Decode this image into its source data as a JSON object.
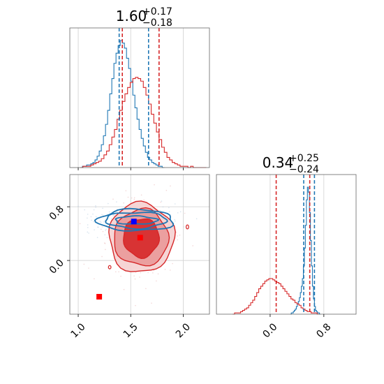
{
  "chart_data": [
    {
      "type": "histogram",
      "parameter_index": 0,
      "title": {
        "value": "1.60",
        "plus": "+0.17",
        "minus": "−0.18"
      },
      "xlim": [
        0.92,
        2.25
      ],
      "grid": true,
      "show_x_ticks": false,
      "series": [
        {
          "color": "#1f77b4",
          "bins_start": 1.02,
          "bin_width": 0.02,
          "counts": [
            0,
            1,
            1,
            2,
            2,
            3,
            4,
            6,
            9,
            13,
            18,
            25,
            34,
            45,
            58,
            70,
            82,
            90,
            96,
            100,
            98,
            94,
            86,
            78,
            68,
            57,
            47,
            38,
            30,
            23,
            17,
            12,
            8,
            6,
            4,
            3,
            2,
            1,
            1,
            0
          ],
          "quantiles": [
            1.39,
            1.67
          ]
        },
        {
          "color": "#d62728",
          "bins_start": 1.02,
          "bin_width": 0.025,
          "counts": [
            0,
            1,
            1,
            1,
            2,
            3,
            4,
            5,
            7,
            10,
            13,
            18,
            24,
            30,
            38,
            45,
            52,
            58,
            63,
            67,
            70,
            71,
            70,
            68,
            63,
            57,
            50,
            42,
            35,
            28,
            22,
            16,
            12,
            8,
            6,
            4,
            3,
            2,
            1,
            1,
            1,
            0,
            1,
            0,
            0,
            0,
            0,
            0
          ],
          "quantiles": [
            1.42,
            1.77
          ]
        }
      ]
    },
    {
      "type": "histogram",
      "parameter_index": 1,
      "title": {
        "value": "0.34",
        "plus": "+0.25",
        "minus": "−0.24"
      },
      "xlim": [
        -0.8,
        1.28
      ],
      "xticks": [
        "0.0",
        "0.8"
      ],
      "xtick_values": [
        0.0,
        0.8
      ],
      "grid": true,
      "series": [
        {
          "color": "#1f77b4",
          "bins_start": 0.3,
          "bin_width": 0.015,
          "counts": [
            0,
            1,
            1,
            2,
            3,
            4,
            6,
            8,
            10,
            13,
            17,
            22,
            28,
            38,
            52,
            70,
            90,
            100,
            96,
            80,
            58,
            38,
            22,
            12,
            6,
            3,
            2,
            1,
            1,
            0
          ],
          "quantiles": [
            0.5,
            0.66
          ]
        },
        {
          "color": "#d62728",
          "bins_start": -0.56,
          "bin_width": 0.03,
          "counts": [
            0,
            1,
            1,
            1,
            2,
            3,
            4,
            5,
            7,
            9,
            11,
            14,
            17,
            20,
            22,
            24,
            26,
            27,
            28,
            28,
            27,
            26,
            25,
            24,
            22,
            20,
            18,
            16,
            14,
            12,
            11,
            9,
            8,
            7,
            5,
            4,
            3,
            2,
            2,
            1,
            1,
            1,
            0
          ],
          "quantiles": [
            0.09,
            0.59
          ]
        }
      ]
    },
    {
      "type": "scatter",
      "panel": "2d",
      "xlim": [
        0.92,
        2.25
      ],
      "ylim": [
        -0.8,
        1.28
      ],
      "xticks": [
        "1.0",
        "1.5",
        "2.0"
      ],
      "xtick_values": [
        1.0,
        1.5,
        2.0
      ],
      "yticks": [
        "0.0",
        "0.8"
      ],
      "ytick_values": [
        0.0,
        0.8
      ],
      "grid": true,
      "contours": [
        {
          "color": "#d62728",
          "center": [
            1.6,
            0.34
          ],
          "levels": [
            {
              "rx": 0.17,
              "ry": 0.29,
              "fill": "#d62728",
              "opacity": 0.9
            },
            {
              "rx": 0.26,
              "ry": 0.42,
              "fill": "#ea9999",
              "opacity": 0.9
            },
            {
              "rx": 0.31,
              "ry": 0.52,
              "fill": "#f5d0d0",
              "opacity": 0.9
            }
          ]
        },
        {
          "color": "#1f77b4",
          "center": [
            1.55,
            0.6
          ],
          "levels": [
            {
              "rx": 0.2,
              "ry": 0.06
            },
            {
              "rx": 0.29,
              "ry": 0.12
            },
            {
              "rx": 0.36,
              "ry": 0.16
            }
          ]
        }
      ],
      "markers": [
        {
          "x": 1.53,
          "y": 0.58,
          "color": "#0000ff",
          "shape": "square"
        },
        {
          "x": 1.59,
          "y": 0.34,
          "color": "#ff0000",
          "shape": "square"
        },
        {
          "x": 1.2,
          "y": -0.54,
          "color": "#ff0000",
          "shape": "square"
        }
      ]
    }
  ]
}
